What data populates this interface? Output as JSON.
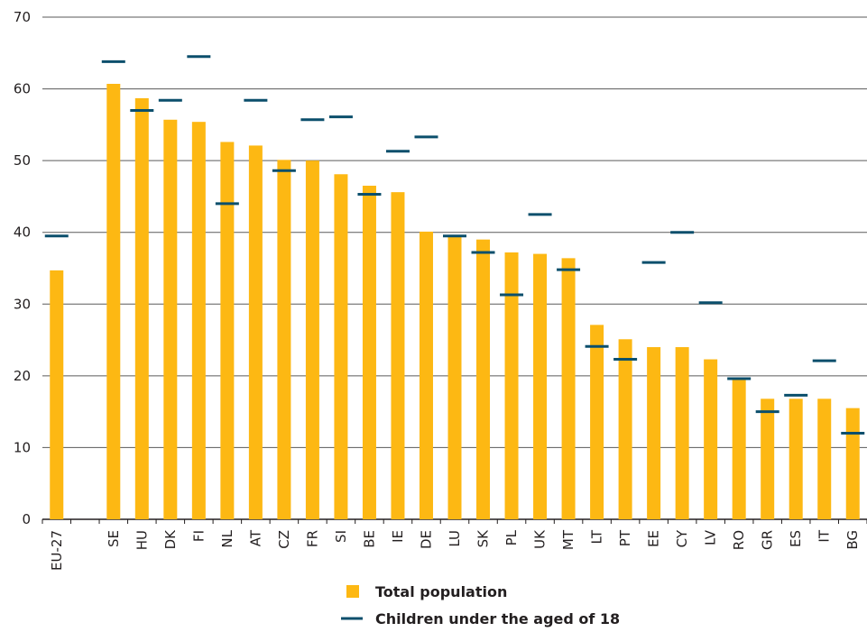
{
  "chart_data": {
    "type": "bar",
    "title": "",
    "xlabel": "",
    "ylabel": "",
    "ylim": [
      0,
      70
    ],
    "yticks": [
      0,
      10,
      20,
      30,
      40,
      50,
      60,
      70
    ],
    "grid": true,
    "legend_position": "bottom",
    "categories": [
      "EU-27",
      "",
      "SE",
      "HU",
      "DK",
      "FI",
      "NL",
      "AT",
      "CZ",
      "FR",
      "SI",
      "BE",
      "IE",
      "DE",
      "LU",
      "SK",
      "PL",
      "UK",
      "MT",
      "LT",
      "PT",
      "EE",
      "CY",
      "LV",
      "RO",
      "GR",
      "ES",
      "IT",
      "BG"
    ],
    "series": [
      {
        "name": "Total population",
        "kind": "bar",
        "color": "#fdb813",
        "values": [
          34.7,
          null,
          60.7,
          58.7,
          55.7,
          55.4,
          52.6,
          52.1,
          50.1,
          50.0,
          48.1,
          46.5,
          45.6,
          40.1,
          39.6,
          39.0,
          37.2,
          37.0,
          36.4,
          27.1,
          25.1,
          24.0,
          24.0,
          22.3,
          19.7,
          16.8,
          16.8,
          16.8,
          15.5
        ]
      },
      {
        "name": "Children under the aged of 18",
        "kind": "marker",
        "color": "#0b4f6c",
        "values": [
          39.5,
          null,
          63.8,
          57.0,
          58.4,
          64.5,
          44.0,
          58.4,
          48.6,
          55.7,
          56.1,
          45.3,
          51.3,
          53.3,
          39.5,
          37.2,
          31.3,
          42.5,
          34.8,
          24.1,
          22.3,
          35.8,
          40.0,
          30.2,
          19.6,
          15.0,
          17.3,
          22.1,
          12.0
        ]
      }
    ]
  }
}
